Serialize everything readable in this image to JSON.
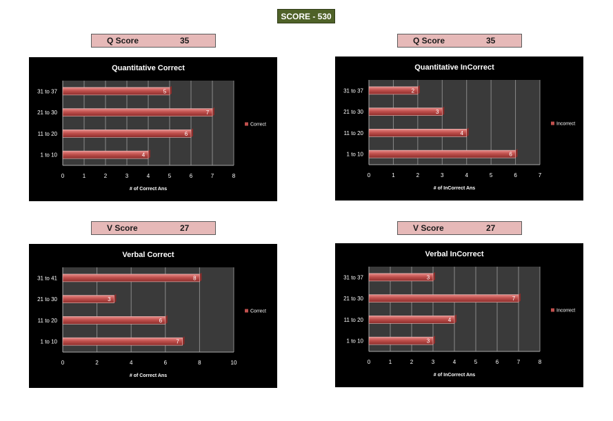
{
  "header": {
    "score_text": "SCORE - 530"
  },
  "labels": [
    {
      "label": "Q Score",
      "value": "35"
    },
    {
      "label": "Q Score",
      "value": "35"
    },
    {
      "label": "V Score",
      "value": "27"
    },
    {
      "label": "V Score",
      "value": "27"
    }
  ],
  "colors": {
    "bar": "#c0504d",
    "bar_dark": "#8b2c2a",
    "plot_bg": "#3a3a3a",
    "grid": "#8a8a8a",
    "chart_bg": "#000000"
  },
  "chart_data": [
    {
      "type": "bar",
      "orientation": "horizontal",
      "title": "Quantitative Correct",
      "categories": [
        "1 to 10",
        "11 to 20",
        "21 to 30",
        "31 to 37"
      ],
      "series": [
        {
          "name": "Correct",
          "values": [
            4,
            6,
            7,
            5
          ]
        }
      ],
      "xlabel": "# of Correct Ans",
      "xlim": [
        0,
        8
      ],
      "xticks": [
        0,
        1,
        2,
        3,
        4,
        5,
        6,
        7,
        8
      ],
      "legend": "right"
    },
    {
      "type": "bar",
      "orientation": "horizontal",
      "title": "Quantitative InCorrect",
      "categories": [
        "1 to 10",
        "11 to 20",
        "21 to 30",
        "31 to 37"
      ],
      "series": [
        {
          "name": "Incorrect",
          "values": [
            6,
            4,
            3,
            2
          ]
        }
      ],
      "xlabel": "# of InCorrect Ans",
      "xlim": [
        0,
        7
      ],
      "xticks": [
        0,
        1,
        2,
        3,
        4,
        5,
        6,
        7
      ],
      "legend": "right"
    },
    {
      "type": "bar",
      "orientation": "horizontal",
      "title": "Verbal Correct",
      "categories": [
        "1 to 10",
        "11 to 20",
        "21 to 30",
        "31 to 41"
      ],
      "series": [
        {
          "name": "Correct",
          "values": [
            7,
            6,
            3,
            8
          ]
        }
      ],
      "xlabel": "# of Correct Ans",
      "xlim": [
        0,
        10
      ],
      "xticks": [
        0,
        2,
        4,
        6,
        8,
        10
      ],
      "legend": "right"
    },
    {
      "type": "bar",
      "orientation": "horizontal",
      "title": "Verbal InCorrect",
      "categories": [
        "1 to 10",
        "11 to 20",
        "21 to 30",
        "31 to 37"
      ],
      "series": [
        {
          "name": "Incorrect",
          "values": [
            3,
            4,
            7,
            3
          ]
        }
      ],
      "xlabel": "# of InCorrect Ans",
      "xlim": [
        0,
        8
      ],
      "xticks": [
        0,
        1,
        2,
        3,
        4,
        5,
        6,
        7,
        8
      ],
      "legend": "right"
    }
  ]
}
